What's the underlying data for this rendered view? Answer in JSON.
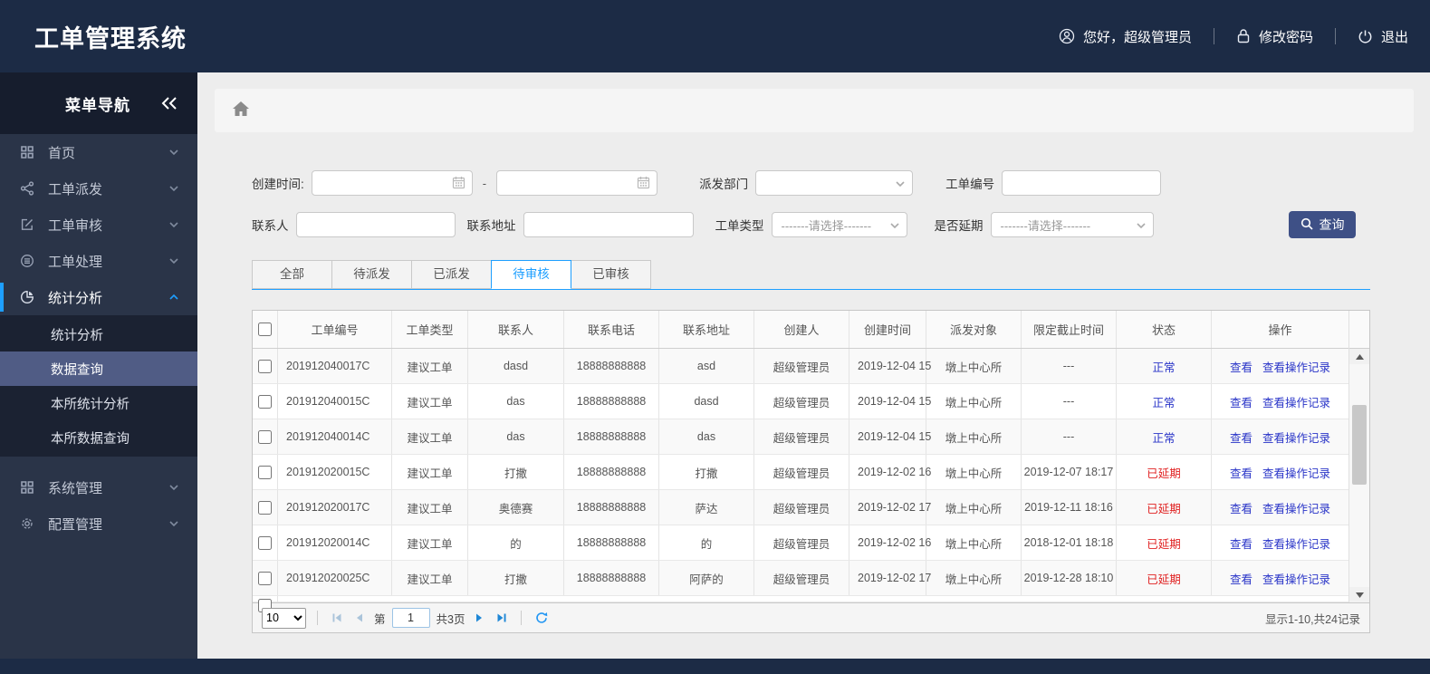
{
  "app": {
    "title": "工单管理系统"
  },
  "header": {
    "greeting": "您好，超级管理员",
    "change_password": "修改密码",
    "logout": "退出"
  },
  "sidebar": {
    "title": "菜单导航",
    "collapse_icon": "double-chevron-left-icon",
    "items": [
      {
        "label": "首页",
        "icon": "grid-icon",
        "expanded": false,
        "active": false
      },
      {
        "label": "工单派发",
        "icon": "share-icon",
        "expanded": false,
        "active": false
      },
      {
        "label": "工单审核",
        "icon": "edit-icon",
        "expanded": false,
        "active": false
      },
      {
        "label": "工单处理",
        "icon": "process-icon",
        "expanded": false,
        "active": false
      },
      {
        "label": "统计分析",
        "icon": "pie-icon",
        "expanded": true,
        "active": true,
        "gap_after": true,
        "children": [
          {
            "label": "统计分析",
            "active": false
          },
          {
            "label": "数据查询",
            "active": true
          },
          {
            "label": "本所统计分析",
            "active": false
          },
          {
            "label": "本所数据查询",
            "active": false
          }
        ]
      },
      {
        "label": "系统管理",
        "icon": "grid-icon",
        "expanded": false,
        "active": false
      },
      {
        "label": "配置管理",
        "icon": "gear-icon",
        "expanded": false,
        "active": false
      }
    ]
  },
  "filters": {
    "create_time_label": "创建时间:",
    "date_separator": "-",
    "create_time_start": "",
    "create_time_end": "",
    "dispatch_dept_label": "派发部门",
    "dispatch_dept_value": "",
    "order_no_label": "工单编号",
    "order_no_value": "",
    "contact_label": "联系人",
    "contact_value": "",
    "address_label": "联系地址",
    "address_value": "",
    "order_type_label": "工单类型",
    "order_type_value": "-------请选择-------",
    "delay_label": "是否延期",
    "delay_value": "-------请选择-------",
    "search_button": "查询"
  },
  "tabs": [
    {
      "label": "全部",
      "active": false
    },
    {
      "label": "待派发",
      "active": false
    },
    {
      "label": "已派发",
      "active": false
    },
    {
      "label": "待审核",
      "active": true
    },
    {
      "label": "已审核",
      "active": false
    }
  ],
  "table": {
    "columns": [
      "工单编号",
      "工单类型",
      "联系人",
      "联系电话",
      "联系地址",
      "创建人",
      "创建时间",
      "派发对象",
      "限定截止时间",
      "状态",
      "操作"
    ],
    "action_labels": [
      "查看",
      "查看操作记录"
    ],
    "status_colors": {
      "normal": "#2a35c8",
      "delayed": "#e02121"
    },
    "rows": [
      {
        "order_no": "201912040017C",
        "type": "建议工单",
        "contact": "dasd",
        "phone": "18888888888",
        "address": "asd",
        "creator": "超级管理员",
        "create_time": "2019-12-04 15",
        "target": "墩上中心所",
        "deadline": "---",
        "status": "正常",
        "status_type": "normal"
      },
      {
        "order_no": "201912040015C",
        "type": "建议工单",
        "contact": "das",
        "phone": "18888888888",
        "address": "dasd",
        "creator": "超级管理员",
        "create_time": "2019-12-04 15",
        "target": "墩上中心所",
        "deadline": "---",
        "status": "正常",
        "status_type": "normal"
      },
      {
        "order_no": "201912040014C",
        "type": "建议工单",
        "contact": "das",
        "phone": "18888888888",
        "address": "das",
        "creator": "超级管理员",
        "create_time": "2019-12-04 15",
        "target": "墩上中心所",
        "deadline": "---",
        "status": "正常",
        "status_type": "normal"
      },
      {
        "order_no": "201912020015C",
        "type": "建议工单",
        "contact": "打撒",
        "phone": "18888888888",
        "address": "打撒",
        "creator": "超级管理员",
        "create_time": "2019-12-02 16",
        "target": "墩上中心所",
        "deadline": "2019-12-07 18:17",
        "status": "已延期",
        "status_type": "delayed"
      },
      {
        "order_no": "201912020017C",
        "type": "建议工单",
        "contact": "奥德赛",
        "phone": "18888888888",
        "address": "萨达",
        "creator": "超级管理员",
        "create_time": "2019-12-02 17",
        "target": "墩上中心所",
        "deadline": "2019-12-11 18:16",
        "status": "已延期",
        "status_type": "delayed"
      },
      {
        "order_no": "201912020014C",
        "type": "建议工单",
        "contact": "的",
        "phone": "18888888888",
        "address": "的",
        "creator": "超级管理员",
        "create_time": "2019-12-02 16",
        "target": "墩上中心所",
        "deadline": "2018-12-01 18:18",
        "status": "已延期",
        "status_type": "delayed"
      },
      {
        "order_no": "201912020025C",
        "type": "建议工单",
        "contact": "打撒",
        "phone": "18888888888",
        "address": "阿萨的",
        "creator": "超级管理员",
        "create_time": "2019-12-02 17",
        "target": "墩上中心所",
        "deadline": "2019-12-28 18:10",
        "status": "已延期",
        "status_type": "delayed"
      }
    ]
  },
  "pagination": {
    "page_size": "10",
    "page_label_prefix": "第",
    "current_page": "1",
    "total_pages_label": "共3页",
    "summary": "显示1-10,共24记录"
  }
}
